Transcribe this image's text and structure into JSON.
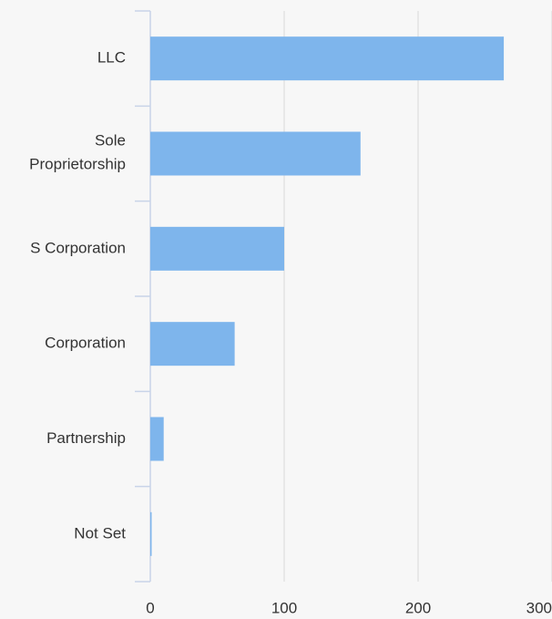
{
  "chart_data": {
    "type": "barh",
    "categories": [
      "LLC",
      "Sole Proprietorship",
      "S Corporation",
      "Corporation",
      "Partnership",
      "Not Set"
    ],
    "values": [
      264,
      157,
      100,
      63,
      10,
      1
    ],
    "color": "#7eb5ec",
    "xlim": [
      0,
      300
    ],
    "xticks": [
      0,
      100,
      200,
      300
    ],
    "grid": true
  }
}
